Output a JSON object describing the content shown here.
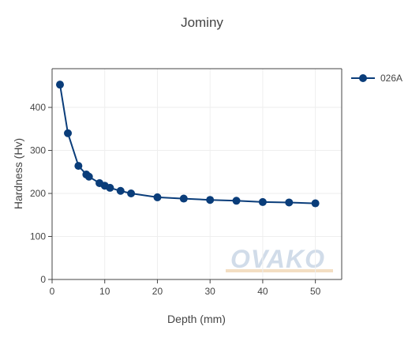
{
  "chart_data": {
    "type": "line",
    "title": "Jominy",
    "xlabel": "Depth (mm)",
    "ylabel": "Hardness (Hv)",
    "xlim": [
      0,
      55
    ],
    "ylim": [
      0,
      490
    ],
    "xticks": [
      0,
      10,
      20,
      30,
      40,
      50
    ],
    "yticks": [
      0,
      100,
      200,
      300,
      400
    ],
    "grid": true,
    "legend_position": "top-right",
    "series": [
      {
        "name": "026A",
        "color": "#0a3d7a",
        "marker": "circle",
        "x": [
          1.5,
          3,
          5,
          6.5,
          7,
          9,
          10,
          11,
          13,
          15,
          20,
          25,
          30,
          35,
          40,
          45,
          50
        ],
        "y": [
          453,
          340,
          264,
          244,
          239,
          224,
          218,
          213,
          206,
          200,
          191,
          188,
          185,
          183,
          180,
          179,
          177
        ]
      }
    ]
  },
  "watermark": {
    "text": "OVAKO",
    "color": "#c9d7e6",
    "accent": "#f2d9b8"
  }
}
